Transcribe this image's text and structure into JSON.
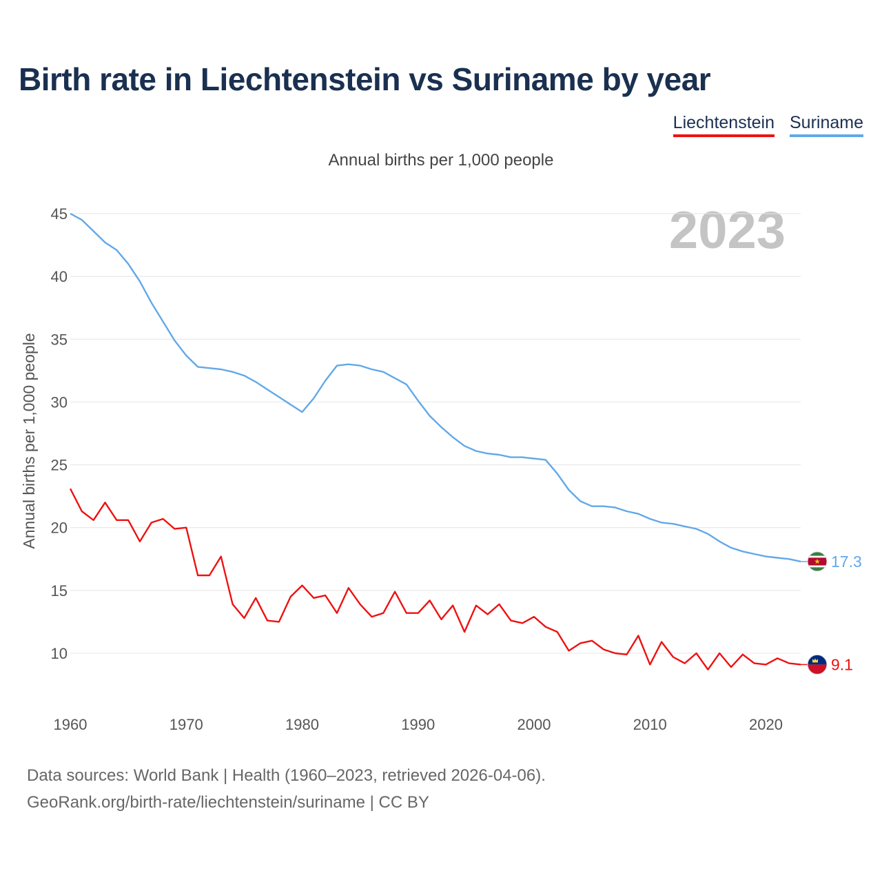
{
  "chart_data": {
    "type": "line",
    "title": "Birth rate in Liechtenstein vs Suriname by year",
    "subtitle": "Annual births per 1,000 people",
    "ylabel": "Annual births per 1,000 people",
    "xlabel": "",
    "year_label": "2023",
    "xlim": [
      1960,
      2023
    ],
    "ylim": [
      6,
      45
    ],
    "x_ticks": [
      1960,
      1970,
      1980,
      1990,
      2000,
      2010,
      2020
    ],
    "y_ticks": [
      10,
      15,
      20,
      25,
      30,
      35,
      40,
      45
    ],
    "grid": true,
    "legend_position": "top-right",
    "x": [
      1960,
      1961,
      1962,
      1963,
      1964,
      1965,
      1966,
      1967,
      1968,
      1969,
      1970,
      1971,
      1972,
      1973,
      1974,
      1975,
      1976,
      1977,
      1978,
      1979,
      1980,
      1981,
      1982,
      1983,
      1984,
      1985,
      1986,
      1987,
      1988,
      1989,
      1990,
      1991,
      1992,
      1993,
      1994,
      1995,
      1996,
      1997,
      1998,
      1999,
      2000,
      2001,
      2002,
      2003,
      2004,
      2005,
      2006,
      2007,
      2008,
      2009,
      2010,
      2011,
      2012,
      2013,
      2014,
      2015,
      2016,
      2017,
      2018,
      2019,
      2020,
      2021,
      2022,
      2023
    ],
    "series": [
      {
        "name": "Liechtenstein",
        "color": "#ee1111",
        "end_label": "9.1",
        "values": [
          23.1,
          21.3,
          20.6,
          22.0,
          20.6,
          20.6,
          18.9,
          20.4,
          20.7,
          19.9,
          20.0,
          16.2,
          16.2,
          17.7,
          13.9,
          12.8,
          14.4,
          12.6,
          12.5,
          14.5,
          15.4,
          14.4,
          14.6,
          13.2,
          15.2,
          13.9,
          12.9,
          13.2,
          14.9,
          13.2,
          13.2,
          14.2,
          12.7,
          13.8,
          11.7,
          13.8,
          13.1,
          13.9,
          12.6,
          12.4,
          12.9,
          12.1,
          11.7,
          10.2,
          10.8,
          11.0,
          10.3,
          10.0,
          9.9,
          11.4,
          9.1,
          10.9,
          9.7,
          9.2,
          10.0,
          8.7,
          10.0,
          8.9,
          9.9,
          9.2,
          9.1,
          9.6,
          9.2,
          9.1
        ]
      },
      {
        "name": "Suriname",
        "color": "#62a8e8",
        "end_label": "17.3",
        "values": [
          45.0,
          44.5,
          43.6,
          42.7,
          42.1,
          41.0,
          39.6,
          37.9,
          36.4,
          34.9,
          33.7,
          32.8,
          32.7,
          32.6,
          32.4,
          32.1,
          31.6,
          31.0,
          30.4,
          29.8,
          29.2,
          30.3,
          31.7,
          32.9,
          33.0,
          32.9,
          32.6,
          32.4,
          31.9,
          31.4,
          30.1,
          28.9,
          28.0,
          27.2,
          26.5,
          26.1,
          25.9,
          25.8,
          25.6,
          25.6,
          25.5,
          25.4,
          24.3,
          23.0,
          22.1,
          21.7,
          21.7,
          21.6,
          21.3,
          21.1,
          20.7,
          20.4,
          20.3,
          20.1,
          19.9,
          19.5,
          18.9,
          18.4,
          18.1,
          17.9,
          17.7,
          17.6,
          17.5,
          17.3
        ]
      }
    ]
  },
  "footer": {
    "line1": "Data sources: World Bank | Health (1960–2023, retrieved 2026-04-06).",
    "line2": "GeoRank.org/birth-rate/liechtenstein/suriname | CC BY"
  },
  "colors": {
    "title": "#1a3050",
    "grid": "#e4e4e4",
    "axis_text": "#555555",
    "year_watermark": "#c4c4c4"
  },
  "icons": {
    "liechtenstein_flag": "liechtenstein-flag-icon",
    "suriname_flag": "suriname-flag-icon"
  }
}
